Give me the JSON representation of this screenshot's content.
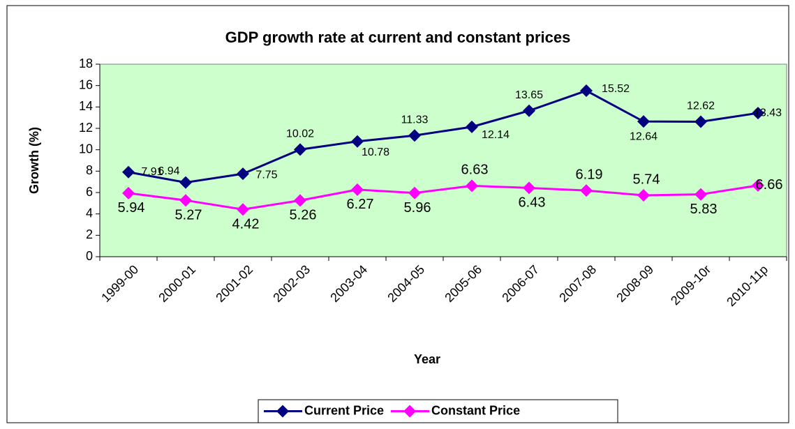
{
  "chart_data": {
    "type": "line",
    "title": "GDP growth rate at current and constant prices",
    "x_label": "Year",
    "y_label": "Growth (%)",
    "categories": [
      "1999-00",
      "2000-01",
      "2001-02",
      "2002-03",
      "2003-04",
      "2004-05",
      "2005-06",
      "2006-07",
      "2007-08",
      "2008-09",
      "2009-10r",
      "2010-11p"
    ],
    "series": [
      {
        "name": "Current Price",
        "color": "#000080",
        "values": [
          7.91,
          6.94,
          7.75,
          10.02,
          10.78,
          11.33,
          12.14,
          13.65,
          15.52,
          12.64,
          12.62,
          13.43
        ]
      },
      {
        "name": "Constant Price",
        "color": "#ff00ff",
        "values": [
          5.94,
          5.27,
          4.42,
          5.26,
          6.27,
          5.96,
          6.63,
          6.43,
          6.19,
          5.74,
          5.83,
          6.66
        ]
      }
    ],
    "ylim": [
      0,
      18
    ],
    "yticks": [
      0,
      2,
      4,
      6,
      8,
      10,
      12,
      14,
      16,
      18
    ],
    "plot_background": "#ccffcc",
    "legend": "bottom"
  }
}
